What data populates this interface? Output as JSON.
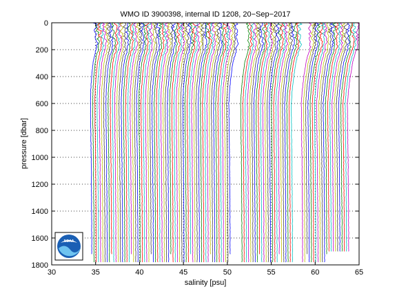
{
  "chart_data": {
    "type": "line",
    "title": "WMO ID 3900398, internal ID 1208, 20−Sep−2017",
    "xlabel": "salinity [psu]",
    "ylabel": "pressure [dbar]",
    "xlim": [
      30,
      65
    ],
    "ylim": [
      0,
      1800
    ],
    "y_reversed": true,
    "grid": true,
    "xticks": [
      "30",
      "35",
      "40",
      "45",
      "50",
      "55",
      "60",
      "65"
    ],
    "yticks": [
      "0",
      "200",
      "400",
      "600",
      "800",
      "1000",
      "1200",
      "1400",
      "1600",
      "1800"
    ],
    "profile_offset_psu": 0.25,
    "profile_count": 110,
    "series_colors": [
      "#0000ff",
      "#008000",
      "#ff0000",
      "#00bfbf",
      "#bf00bf",
      "#bfbf00",
      "#404040"
    ],
    "profile_shape": {
      "pressure": [
        0,
        50,
        100,
        150,
        200,
        250,
        300,
        400,
        500,
        600,
        800,
        1000,
        1200,
        1400,
        1600,
        1780
      ],
      "salinity": [
        34.95,
        34.95,
        35.0,
        35.15,
        35.05,
        34.85,
        34.7,
        34.55,
        34.45,
        34.42,
        34.45,
        34.5,
        34.52,
        34.55,
        34.56,
        34.57
      ]
    },
    "logo_label": "NOAA"
  }
}
